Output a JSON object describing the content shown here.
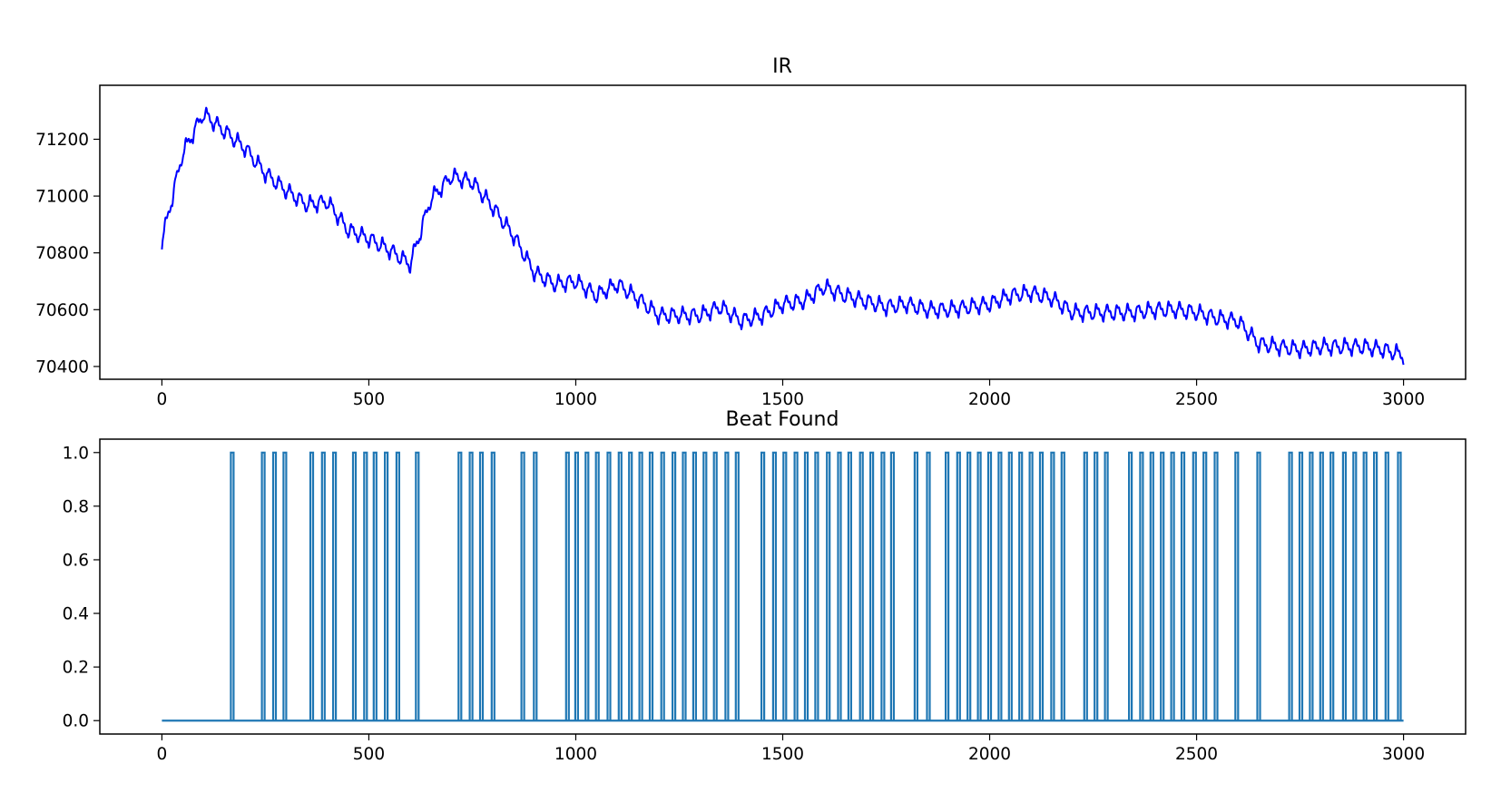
{
  "chart_data": [
    {
      "type": "line",
      "title": "IR",
      "xlabel": "",
      "ylabel": "",
      "xlim": [
        -150,
        3150
      ],
      "ylim": [
        70355,
        71390
      ],
      "x_ticks": [
        0,
        500,
        1000,
        1500,
        2000,
        2500,
        3000
      ],
      "y_ticks": [
        70400,
        70600,
        70800,
        71000,
        71200
      ],
      "grid": false,
      "series": [
        {
          "color": "#0000ff",
          "x_start": 0,
          "x_step": 50,
          "values": [
            70840,
            71150,
            71290,
            71230,
            71170,
            71080,
            71020,
            70970,
            70980,
            70880,
            70850,
            70810,
            70760,
            70990,
            71070,
            71050,
            70960,
            70860,
            70730,
            70690,
            70700,
            70650,
            70690,
            70640,
            70580,
            70580,
            70580,
            70610,
            70560,
            70580,
            70620,
            70630,
            70680,
            70650,
            70630,
            70610,
            70620,
            70600,
            70600,
            70610,
            70620,
            70650,
            70660,
            70640,
            70590,
            70590,
            70590,
            70590,
            70600,
            70600,
            70590,
            70570,
            70560,
            70480,
            70470,
            70460,
            70470,
            70470,
            70470,
            70460,
            70440
          ],
          "oscillation_amplitude": 35,
          "oscillation_period": 25
        }
      ]
    },
    {
      "type": "line",
      "title": "Beat Found",
      "xlabel": "",
      "ylabel": "",
      "xlim": [
        -150,
        3150
      ],
      "ylim": [
        -0.05,
        1.05
      ],
      "x_ticks": [
        0,
        500,
        1000,
        1500,
        2000,
        2500,
        3000
      ],
      "y_ticks": [
        0.0,
        0.2,
        0.4,
        0.6,
        0.8,
        1.0
      ],
      "grid": false,
      "series": [
        {
          "color": "#1f77b4",
          "baseline": 0.0,
          "x_range": [
            0,
            3000
          ],
          "beat_value": 1.0,
          "beat_x": [
            170,
            245,
            272,
            297,
            362,
            390,
            417,
            465,
            492,
            515,
            542,
            570,
            617,
            720,
            747,
            772,
            800,
            872,
            902,
            980,
            1002,
            1027,
            1052,
            1080,
            1107,
            1132,
            1157,
            1182,
            1210,
            1237,
            1262,
            1287,
            1312,
            1337,
            1365,
            1390,
            1452,
            1480,
            1505,
            1532,
            1557,
            1582,
            1610,
            1637,
            1662,
            1690,
            1715,
            1742,
            1765,
            1822,
            1852,
            1897,
            1925,
            1950,
            1975,
            2000,
            2025,
            2050,
            2075,
            2100,
            2125,
            2152,
            2177,
            2232,
            2257,
            2282,
            2340,
            2367,
            2392,
            2417,
            2442,
            2467,
            2495,
            2520,
            2547,
            2597,
            2650,
            2727,
            2752,
            2777,
            2802,
            2827,
            2857,
            2882,
            2907,
            2932,
            2960,
            2990
          ]
        }
      ]
    }
  ]
}
